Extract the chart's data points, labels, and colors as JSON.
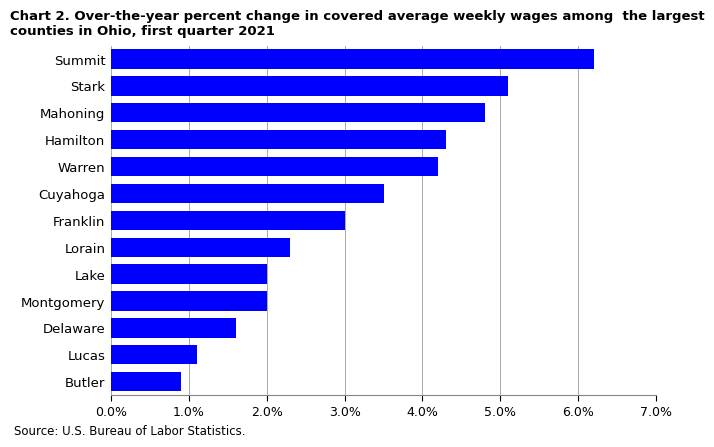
{
  "title": "Chart 2. Over-the-year percent change in covered average weekly wages among  the largest\ncounties in Ohio, first quarter 2021",
  "counties": [
    "Summit",
    "Stark",
    "Mahoning",
    "Hamilton",
    "Warren",
    "Cuyahoga",
    "Franklin",
    "Lorain",
    "Lake",
    "Montgomery",
    "Delaware",
    "Lucas",
    "Butler"
  ],
  "values": [
    0.062,
    0.051,
    0.048,
    0.043,
    0.042,
    0.035,
    0.03,
    0.023,
    0.02,
    0.02,
    0.016,
    0.011,
    0.009
  ],
  "bar_color": "#0000FF",
  "xlim": [
    0,
    0.07
  ],
  "xticks": [
    0.0,
    0.01,
    0.02,
    0.03,
    0.04,
    0.05,
    0.06,
    0.07
  ],
  "source": "Source: U.S. Bureau of Labor Statistics.",
  "background_color": "#FFFFFF",
  "gridcolor": "#AAAAAA",
  "title_fontsize": 9.5,
  "tick_fontsize": 9.0,
  "label_fontsize": 9.5,
  "source_fontsize": 8.5,
  "bar_height": 0.72
}
